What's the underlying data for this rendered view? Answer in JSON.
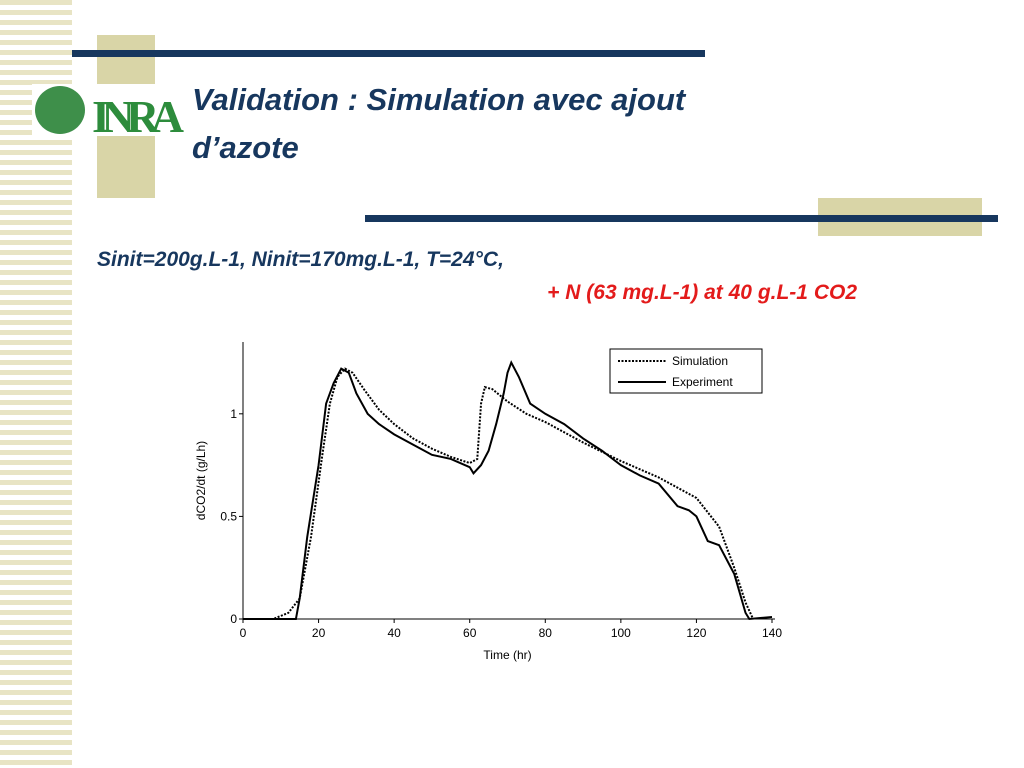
{
  "slide": {
    "logo": "INRA",
    "title_lines": [
      "Validation : Simulation avec ajout",
      "d’azote"
    ],
    "conditions": "Sinit=200g.L-1, Ninit=170mg.L-1, T=24°C,",
    "addition": "+ N (63 mg.L-1) at 40 g.L-1 CO2"
  },
  "chart_data": {
    "type": "line",
    "xlabel": "Time (hr)",
    "ylabel": "dCO2/dt (g/Lh)",
    "xlim": [
      0,
      140
    ],
    "ylim": [
      0,
      1.35
    ],
    "xticks": [
      0,
      20,
      40,
      60,
      80,
      100,
      120,
      140
    ],
    "yticks": [
      0,
      0.5,
      1
    ],
    "legend": "upper right",
    "series": [
      {
        "name": "Simulation",
        "color": "#000000",
        "style": "dotted",
        "x": [
          0,
          8,
          12,
          15,
          18,
          21,
          23,
          25,
          27,
          29,
          32,
          36,
          40,
          45,
          50,
          55,
          60,
          62,
          63,
          64,
          66,
          70,
          75,
          80,
          90,
          100,
          110,
          120,
          126,
          130,
          133,
          135
        ],
        "values": [
          0,
          0,
          0.03,
          0.1,
          0.4,
          0.8,
          1.05,
          1.18,
          1.22,
          1.2,
          1.12,
          1.02,
          0.95,
          0.88,
          0.83,
          0.79,
          0.76,
          0.78,
          1.05,
          1.13,
          1.12,
          1.06,
          1.0,
          0.96,
          0.86,
          0.77,
          0.69,
          0.59,
          0.45,
          0.25,
          0.08,
          0
        ]
      },
      {
        "name": "Experiment",
        "color": "#000000",
        "style": "solid",
        "x": [
          0,
          14,
          15,
          17,
          20,
          22,
          24,
          26,
          28,
          30,
          33,
          36,
          40,
          45,
          50,
          55,
          60,
          61,
          63,
          65,
          67,
          69,
          70,
          71,
          73,
          76,
          80,
          85,
          90,
          95,
          100,
          105,
          110,
          115,
          118,
          120,
          123,
          126,
          130,
          133,
          134,
          140
        ],
        "values": [
          0,
          0,
          0.1,
          0.4,
          0.75,
          1.05,
          1.15,
          1.22,
          1.2,
          1.1,
          1.0,
          0.95,
          0.9,
          0.85,
          0.8,
          0.78,
          0.74,
          0.71,
          0.75,
          0.82,
          0.95,
          1.1,
          1.2,
          1.25,
          1.18,
          1.05,
          1.0,
          0.95,
          0.88,
          0.82,
          0.75,
          0.7,
          0.66,
          0.55,
          0.53,
          0.5,
          0.38,
          0.36,
          0.22,
          0.03,
          0,
          0.01
        ]
      }
    ]
  }
}
